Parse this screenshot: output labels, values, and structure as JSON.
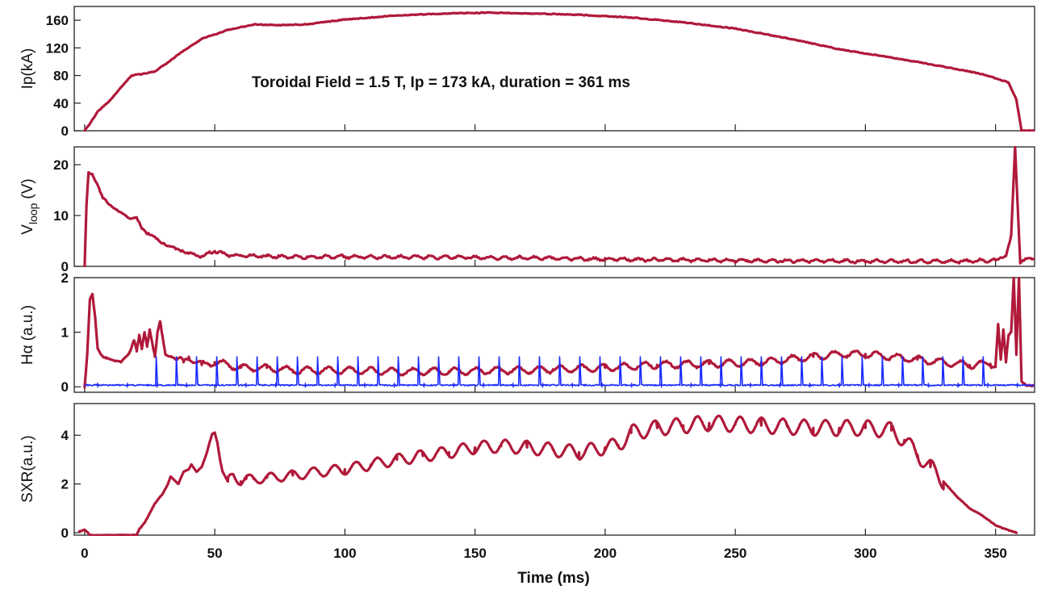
{
  "chart_data": [
    {
      "type": "line",
      "ylabel": "Ip(kA)",
      "annotation": "Toroidal Field = 1.5 T, Ip = 173 kA, duration = 361 ms",
      "xlim": [
        -4,
        365
      ],
      "ylim": [
        0,
        180
      ],
      "yticks": [
        "0",
        "40",
        "80",
        "120",
        "160"
      ],
      "series": [
        {
          "color": "#b0193a",
          "x": [
            0,
            2,
            5,
            10,
            15,
            18,
            22,
            27,
            32,
            38,
            45,
            55,
            65,
            75,
            85,
            100,
            120,
            140,
            155,
            170,
            190,
            210,
            230,
            250,
            270,
            290,
            310,
            330,
            345,
            355,
            358,
            360,
            365
          ],
          "y": [
            0,
            10,
            28,
            45,
            67,
            80,
            82,
            86,
            99,
            116,
            133,
            146,
            154,
            153,
            154,
            161,
            167,
            170,
            171,
            170,
            168,
            164,
            157,
            148,
            134,
            118,
            106,
            93,
            82,
            70,
            45,
            0,
            0
          ]
        }
      ]
    },
    {
      "type": "line",
      "ylabel_main": "V",
      "ylabel_sub": "loop",
      "ylabel_unit": "(V)",
      "xlim": [
        -4,
        365
      ],
      "ylim": [
        0,
        23.5
      ],
      "yticks": [
        "0",
        "10",
        "20"
      ],
      "series": [
        {
          "color": "#b0193a",
          "x": [
            0,
            0.7,
            1.5,
            3,
            5,
            7,
            10,
            13,
            17,
            20,
            22,
            24,
            27,
            30,
            35,
            40,
            45,
            50,
            55,
            60,
            70,
            80,
            100,
            120,
            140,
            160,
            180,
            200,
            220,
            240,
            260,
            280,
            300,
            320,
            340,
            350,
            354,
            356,
            357.5,
            358.5,
            359.5,
            360.5,
            362,
            365
          ],
          "y": [
            0,
            12,
            18.5,
            18,
            16,
            13.5,
            12,
            10.8,
            9.5,
            9.5,
            7.5,
            6.5,
            5.8,
            4.5,
            3.5,
            2.5,
            2,
            3,
            2.2,
            2.1,
            2.0,
            1.8,
            1.9,
            1.8,
            1.8,
            1.7,
            1.6,
            1.4,
            1.3,
            1.2,
            1.1,
            1.1,
            1.0,
            1.0,
            1.0,
            1.2,
            2,
            6,
            23.5,
            12,
            0.6,
            1.2,
            1.5,
            1.5
          ]
        }
      ]
    },
    {
      "type": "line",
      "ylabel_main": "Hα",
      "ylabel_unit": "(a.u.)",
      "xlim": [
        -4,
        365
      ],
      "ylim": [
        -0.1,
        2.0
      ],
      "yticks": [
        "0",
        "1",
        "2"
      ],
      "series": [
        {
          "color": "#b0193a",
          "x": [
            0,
            1,
            2,
            3,
            4,
            5,
            7,
            10,
            14,
            17,
            19,
            20,
            21,
            22,
            23,
            24,
            25,
            26,
            27,
            28,
            29,
            30,
            31,
            33,
            35,
            38,
            40,
            45,
            50,
            60,
            70,
            80,
            100,
            120,
            140,
            160,
            180,
            200,
            220,
            240,
            260,
            270,
            280,
            290,
            300,
            310,
            320,
            330,
            340,
            348,
            350,
            351,
            352,
            353,
            354,
            355,
            356,
            357,
            358,
            359,
            360,
            362,
            365
          ],
          "y": [
            0,
            0.6,
            1.6,
            1.7,
            1.3,
            0.7,
            0.55,
            0.5,
            0.45,
            0.6,
            0.85,
            0.65,
            0.95,
            0.7,
            1.0,
            0.75,
            1.05,
            0.8,
            0.55,
            1.0,
            1.2,
            0.9,
            0.6,
            0.55,
            0.5,
            0.45,
            0.55,
            0.4,
            0.45,
            0.35,
            0.35,
            0.3,
            0.3,
            0.28,
            0.28,
            0.3,
            0.32,
            0.35,
            0.4,
            0.42,
            0.45,
            0.5,
            0.55,
            0.6,
            0.6,
            0.55,
            0.5,
            0.45,
            0.4,
            0.42,
            0.4,
            1.15,
            0.5,
            1.05,
            0.45,
            0.95,
            1.0,
            2.0,
            0.6,
            2.0,
            0.1,
            0.02,
            0.02
          ]
        },
        {
          "color": "#1a2bff",
          "x": [
            0,
            365
          ],
          "y": [
            0.03,
            0.03
          ]
        }
      ]
    },
    {
      "type": "line",
      "ylabel": "SXR(a.u.)",
      "xlabel": "Time (ms)",
      "xlim": [
        -4,
        365
      ],
      "ylim": [
        -0.1,
        5.3
      ],
      "xticks": [
        "0",
        "50",
        "100",
        "150",
        "200",
        "250",
        "300",
        "350"
      ],
      "yticks": [
        "0",
        "2",
        "4"
      ],
      "series": [
        {
          "color": "#b0193a",
          "x": [
            -2,
            0,
            1,
            2,
            20,
            21,
            23,
            25,
            27,
            30,
            32,
            33,
            34,
            36,
            38,
            40,
            41,
            43,
            45,
            47,
            48,
            49,
            50,
            51,
            52,
            53,
            55,
            57,
            60,
            62,
            65,
            70,
            80,
            90,
            100,
            110,
            120,
            130,
            140,
            150,
            160,
            170,
            180,
            190,
            200,
            205,
            210,
            220,
            230,
            240,
            250,
            260,
            270,
            280,
            290,
            300,
            310,
            315,
            320,
            325,
            330,
            335,
            340,
            345,
            350,
            355,
            358
          ],
          "y": [
            0.05,
            0.12,
            0.03,
            -0.1,
            -0.1,
            0.15,
            0.4,
            0.8,
            1.2,
            1.6,
            2.0,
            2.3,
            2.2,
            2.0,
            2.5,
            2.6,
            2.8,
            2.5,
            2.7,
            3.3,
            3.7,
            4.05,
            4.1,
            3.7,
            3.0,
            2.5,
            2.1,
            2.4,
            2.1,
            2.2,
            2.2,
            2.25,
            2.35,
            2.5,
            2.6,
            2.8,
            3.0,
            3.15,
            3.3,
            3.5,
            3.55,
            3.5,
            3.4,
            3.3,
            3.5,
            3.6,
            4.1,
            4.3,
            4.4,
            4.5,
            4.45,
            4.4,
            4.35,
            4.3,
            4.3,
            4.3,
            4.2,
            3.8,
            3.2,
            2.7,
            2.1,
            1.5,
            1.0,
            0.7,
            0.3,
            0.1,
            0.0
          ]
        }
      ]
    }
  ]
}
